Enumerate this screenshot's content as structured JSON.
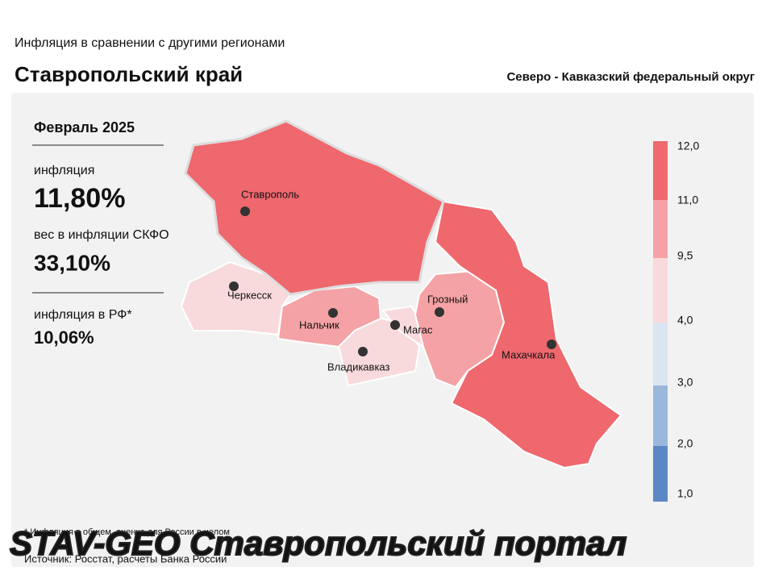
{
  "header": {
    "subtitle": "Инфляция в сравнении с другими регионами",
    "title": "Ставропольский край",
    "district": "Северо - Кавказский федеральный округ"
  },
  "panel": {
    "period": "Февраль 2025",
    "inflation_label": "инфляция",
    "inflation_value": "11,80%",
    "weight_label": "вес в инфляции СКФО",
    "weight_value": "33,10%",
    "rf_label": "инфляция в РФ*",
    "rf_value": "10,06%"
  },
  "cities": [
    "Ставрополь",
    "Черкесск",
    "Нальчик",
    "Магас",
    "Грозный",
    "Владикавказ",
    "Махачкала"
  ],
  "legend": [
    "12,0",
    "11,0",
    "9,5",
    "4,0",
    "3,0",
    "2,0",
    "1,0"
  ],
  "footnote": "* Инфляция в общем, оценка для России в целом",
  "source": "Источник: Росстат, расчеты Банка России",
  "watermark": "STAV-GEO Ставропольский портал"
}
